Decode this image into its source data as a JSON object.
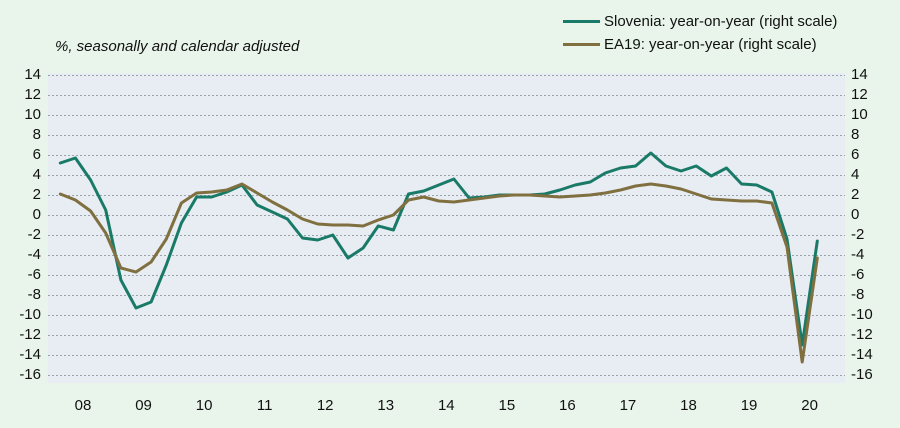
{
  "page": {
    "title": "%, seasonally and calendar adjusted"
  },
  "colors": {
    "page_bg": "#e9f5eb",
    "plot_bg": "#e7edf3",
    "grid": "#9aa2aa",
    "text": "#111111",
    "slovenia_line": "#1a7a68",
    "ea19_line": "#80703f"
  },
  "chart_data": {
    "type": "line",
    "title": "%, seasonally and calendar adjusted",
    "xlabel": "",
    "ylabel": "",
    "ylim": [
      -16,
      14
    ],
    "y_ticks": [
      14,
      12,
      10,
      8,
      6,
      4,
      2,
      0,
      -2,
      -4,
      -6,
      -8,
      -10,
      -12,
      -14,
      -16
    ],
    "y_tick_labels": [
      "14",
      "12",
      "10",
      "8",
      "6",
      "4",
      "2",
      "0",
      "-2",
      "-4",
      "-6",
      "-8",
      "-10",
      "-12",
      "-14",
      "-16"
    ],
    "x_tick_labels": [
      "08",
      "09",
      "10",
      "11",
      "12",
      "13",
      "14",
      "15",
      "16",
      "17",
      "18",
      "19",
      "20"
    ],
    "x_start_quarter": "2008Q1",
    "x_end_quarter": "2020Q3",
    "grid": "horizontal-dashed",
    "legend_position": "top-right",
    "dual_axis": true,
    "series": [
      {
        "name": "Slovenia: year-on-year (right scale)",
        "color": "#1a7a68",
        "values": [
          5.2,
          5.7,
          3.5,
          0.5,
          -6.5,
          -9.3,
          -8.7,
          -5.0,
          -0.8,
          1.8,
          1.8,
          2.3,
          3.0,
          1.0,
          0.3,
          -0.4,
          -2.3,
          -2.5,
          -2.0,
          -4.3,
          -3.3,
          -1.1,
          -1.5,
          2.1,
          2.4,
          3.0,
          3.6,
          1.7,
          1.8,
          2.0,
          2.0,
          2.0,
          2.1,
          2.5,
          3.0,
          3.3,
          4.2,
          4.7,
          4.9,
          6.2,
          4.9,
          4.4,
          4.9,
          3.9,
          4.7,
          3.1,
          3.0,
          2.3,
          -2.4,
          -13.0,
          -2.6
        ]
      },
      {
        "name": "EA19: year-on-year (right scale)",
        "color": "#80703f",
        "values": [
          2.1,
          1.5,
          0.4,
          -1.8,
          -5.3,
          -5.7,
          -4.7,
          -2.4,
          1.2,
          2.2,
          2.3,
          2.5,
          3.1,
          2.2,
          1.3,
          0.5,
          -0.4,
          -0.9,
          -1.0,
          -1.0,
          -1.1,
          -0.5,
          0.0,
          1.5,
          1.8,
          1.4,
          1.3,
          1.5,
          1.7,
          1.9,
          2.0,
          2.0,
          1.9,
          1.8,
          1.9,
          2.0,
          2.2,
          2.5,
          2.9,
          3.1,
          2.9,
          2.6,
          2.1,
          1.6,
          1.5,
          1.4,
          1.4,
          1.2,
          -3.2,
          -14.7,
          -4.3
        ]
      }
    ]
  }
}
